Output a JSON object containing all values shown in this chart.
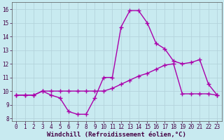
{
  "xlabel": "Windchill (Refroidissement éolien,°C)",
  "xlim": [
    -0.5,
    23.5
  ],
  "ylim": [
    7.8,
    16.5
  ],
  "yticks": [
    8,
    9,
    10,
    11,
    12,
    13,
    14,
    15,
    16
  ],
  "xticks": [
    0,
    1,
    2,
    3,
    4,
    5,
    6,
    7,
    8,
    9,
    10,
    11,
    12,
    13,
    14,
    15,
    16,
    17,
    18,
    19,
    20,
    21,
    22,
    23
  ],
  "bg_color": "#c8eaf0",
  "line1_x": [
    0,
    1,
    2,
    3,
    4,
    5,
    6,
    7,
    8,
    9,
    10,
    11,
    12,
    13,
    14,
    15,
    16,
    17,
    18,
    19,
    20,
    21,
    22,
    23
  ],
  "line1_y": [
    9.7,
    9.7,
    9.7,
    10.0,
    9.7,
    9.5,
    8.5,
    8.3,
    8.3,
    9.5,
    11.0,
    11.0,
    14.7,
    15.9,
    15.9,
    15.0,
    13.5,
    13.1,
    12.2,
    12.0,
    12.1,
    12.3,
    10.5,
    9.7
  ],
  "line2_x": [
    0,
    1,
    2,
    3,
    4,
    5,
    6,
    7,
    8,
    9,
    10,
    11,
    12,
    13,
    14,
    15,
    16,
    17,
    18,
    19,
    20,
    21,
    22,
    23
  ],
  "line2_y": [
    9.7,
    9.7,
    9.7,
    10.0,
    10.0,
    10.0,
    10.0,
    10.0,
    10.0,
    10.0,
    10.0,
    10.2,
    10.5,
    10.8,
    11.1,
    11.3,
    11.6,
    11.9,
    12.0,
    9.8,
    9.8,
    9.8,
    9.8,
    9.7
  ],
  "line_color": "#aa00aa",
  "marker": "+",
  "markersize": 4,
  "linewidth": 1.0,
  "grid_color": "#b0d0d8",
  "tick_fontsize": 5.5,
  "xlabel_fontsize": 6.5
}
